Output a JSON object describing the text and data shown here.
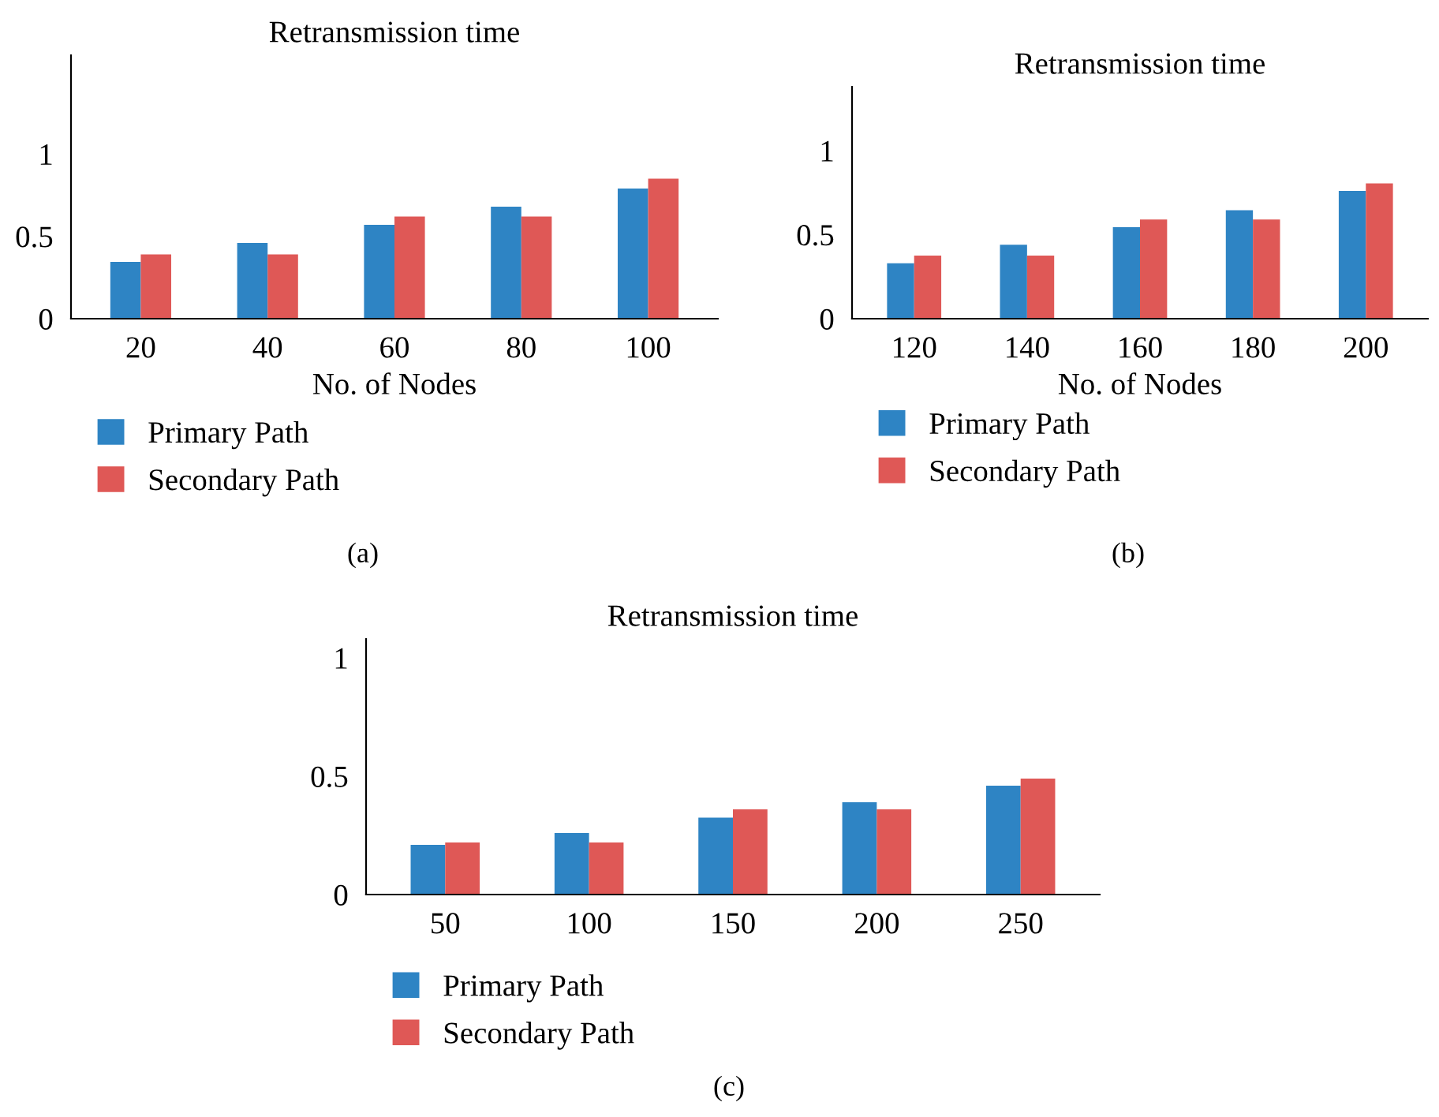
{
  "chart_data": [
    {
      "type": "bar",
      "title": "Retransmission time",
      "xlabel": "No. of Nodes",
      "categories": [
        "20",
        "40",
        "60",
        "80",
        "100"
      ],
      "series": [
        {
          "name": "Primary Path",
          "color": "#2e84c4",
          "values": [
            0.345,
            0.46,
            0.57,
            0.68,
            0.79
          ]
        },
        {
          "name": "Secondary Path",
          "color": "#df5856",
          "values": [
            0.39,
            0.39,
            0.62,
            0.62,
            0.85
          ]
        }
      ],
      "ylim": [
        0,
        1.6
      ],
      "yticks": [
        0,
        0.5,
        1
      ],
      "legend": "bottom",
      "grid": false,
      "annotations": [
        "(a)"
      ]
    },
    {
      "type": "bar",
      "title": "Retransmission time",
      "xlabel": "No. of Nodes",
      "categories": [
        "120",
        "140",
        "160",
        "180",
        "200"
      ],
      "series": [
        {
          "name": "Primary Path",
          "color": "#2e84c4",
          "values": [
            0.33,
            0.44,
            0.545,
            0.645,
            0.76
          ]
        },
        {
          "name": "Secondary Path",
          "color": "#df5856",
          "values": [
            0.375,
            0.375,
            0.59,
            0.59,
            0.805
          ]
        }
      ],
      "ylim": [
        0,
        1.38
      ],
      "yticks": [
        0,
        0.5,
        1
      ],
      "legend": "bottom",
      "grid": false,
      "annotations": [
        "(b)"
      ]
    },
    {
      "type": "bar",
      "title": "Retransmission time",
      "categories": [
        "50",
        "100",
        "150",
        "200",
        "250"
      ],
      "series": [
        {
          "name": "Primary Path",
          "color": "#2e84c4",
          "values": [
            0.21,
            0.26,
            0.325,
            0.39,
            0.46
          ]
        },
        {
          "name": "Secondary Path",
          "color": "#df5856",
          "values": [
            0.22,
            0.22,
            0.36,
            0.36,
            0.49
          ]
        }
      ],
      "ylim": [
        0,
        1.08
      ],
      "yticks": [
        0,
        0.5,
        1
      ],
      "legend": "bottom",
      "grid": false,
      "annotations": [
        "(c)"
      ]
    }
  ]
}
